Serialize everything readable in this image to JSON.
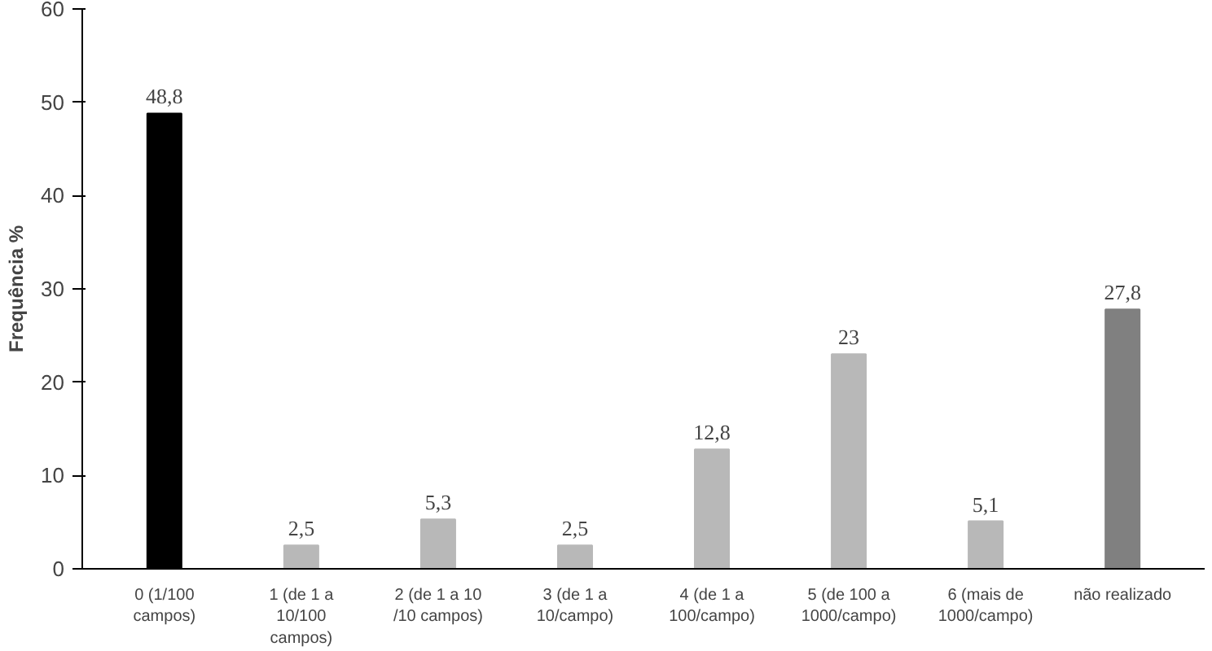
{
  "chart_data": {
    "type": "bar",
    "ylabel": "Frequência %",
    "categories": [
      "0 (1/100\ncampos)",
      "1 (de 1 a\n10/100\ncampos)",
      "2 (de 1 a 10\n/10 campos)",
      "3 (de 1 a\n10/campo)",
      "4 (de 1 a\n100/campo)",
      "5 (de 100 a\n1000/campo)",
      "6 (mais de\n1000/campo)",
      "não realizado"
    ],
    "values": [
      48.8,
      2.5,
      5.3,
      2.5,
      12.8,
      23,
      5.1,
      27.8
    ],
    "colors": [
      "#000000",
      "#b8b8b8",
      "#b8b8b8",
      "#b8b8b8",
      "#b8b8b8",
      "#b8b8b8",
      "#b8b8b8",
      "#808080"
    ],
    "value_labels": [
      "48,8",
      "2,5",
      "5,3",
      "2,5",
      "12,8",
      "23",
      "5,1",
      "27,8"
    ],
    "ylim": [
      0,
      60
    ],
    "yticks": [
      0,
      10,
      20,
      30,
      40,
      50,
      60
    ],
    "grid": false
  }
}
